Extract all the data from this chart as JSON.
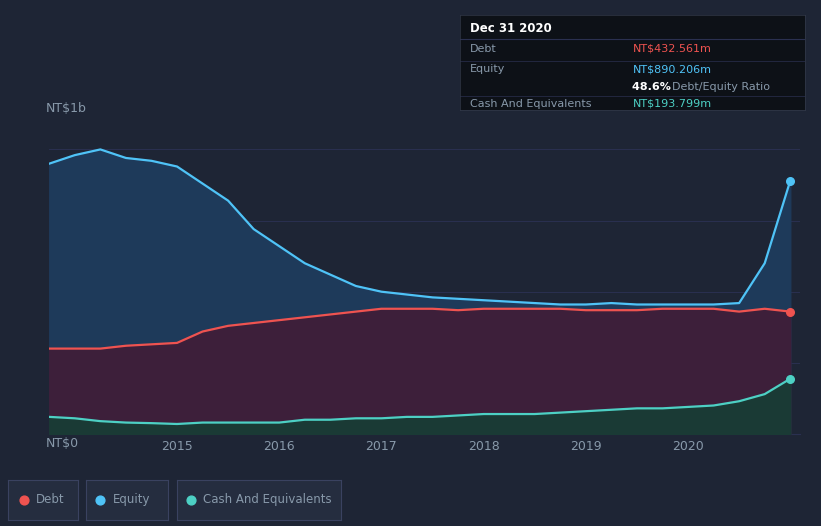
{
  "bg_color": "#1e2535",
  "plot_bg_color": "#1e2535",
  "equity_color": "#4fc3f7",
  "debt_color": "#ef5350",
  "cash_color": "#4dd0c4",
  "equity_fill": "#1e3a5a",
  "debt_fill": "#3d1f3a",
  "cash_fill": "#1a3a35",
  "tooltip_bg": "#0d1117",
  "title_date": "Dec 31 2020",
  "debt_label": "Debt",
  "equity_label": "Equity",
  "cash_label": "Cash And Equivalents",
  "debt_value": "NT$432.561m",
  "equity_value": "NT$890.206m",
  "ratio_text": "48.6%",
  "ratio_label": "Debt/Equity Ratio",
  "cash_value": "NT$193.799m",
  "ylabel_top": "NT$1b",
  "ylabel_bottom": "NT$0",
  "grid_color": "#2a3050",
  "text_color": "#8899aa",
  "legend_bg": "#252d3f",
  "years": [
    2013.75,
    2014.0,
    2014.25,
    2014.5,
    2014.75,
    2015.0,
    2015.25,
    2015.5,
    2015.75,
    2016.0,
    2016.25,
    2016.5,
    2016.75,
    2017.0,
    2017.25,
    2017.5,
    2017.75,
    2018.0,
    2018.25,
    2018.5,
    2018.75,
    2019.0,
    2019.25,
    2019.5,
    2019.75,
    2020.0,
    2020.25,
    2020.5,
    2020.75,
    2021.0
  ],
  "equity": [
    0.95,
    0.98,
    1.0,
    0.97,
    0.96,
    0.94,
    0.88,
    0.82,
    0.72,
    0.66,
    0.6,
    0.56,
    0.52,
    0.5,
    0.49,
    0.48,
    0.475,
    0.47,
    0.465,
    0.46,
    0.455,
    0.455,
    0.46,
    0.455,
    0.455,
    0.455,
    0.455,
    0.46,
    0.6,
    0.89
  ],
  "debt": [
    0.3,
    0.3,
    0.3,
    0.31,
    0.315,
    0.32,
    0.36,
    0.38,
    0.39,
    0.4,
    0.41,
    0.42,
    0.43,
    0.44,
    0.44,
    0.44,
    0.435,
    0.44,
    0.44,
    0.44,
    0.44,
    0.435,
    0.435,
    0.435,
    0.44,
    0.44,
    0.44,
    0.43,
    0.44,
    0.43
  ],
  "cash": [
    0.06,
    0.055,
    0.045,
    0.04,
    0.038,
    0.035,
    0.04,
    0.04,
    0.04,
    0.04,
    0.05,
    0.05,
    0.055,
    0.055,
    0.06,
    0.06,
    0.065,
    0.07,
    0.07,
    0.07,
    0.075,
    0.08,
    0.085,
    0.09,
    0.09,
    0.095,
    0.1,
    0.115,
    0.14,
    0.194
  ],
  "xlim": [
    2013.75,
    2021.1
  ],
  "ylim": [
    0,
    1.1
  ],
  "xticks": [
    2015,
    2016,
    2017,
    2018,
    2019,
    2020
  ],
  "xtick_labels": [
    "2015",
    "2016",
    "2017",
    "2018",
    "2019",
    "2020"
  ]
}
